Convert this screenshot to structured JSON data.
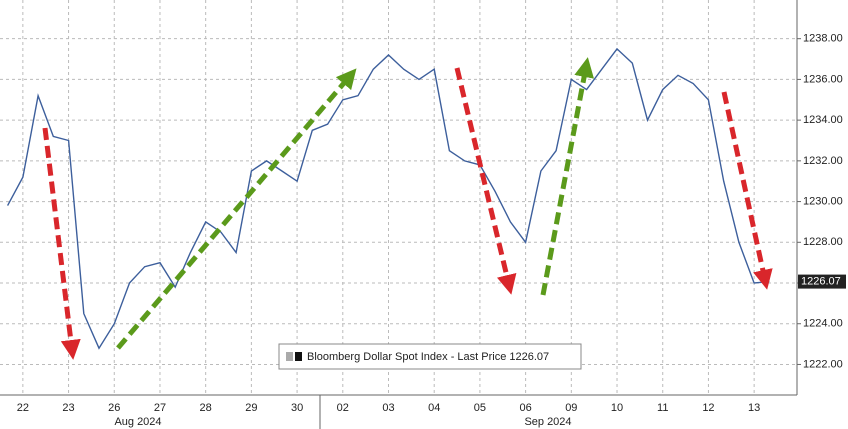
{
  "chart_data": {
    "type": "line",
    "categories": [
      null,
      "22",
      null,
      null,
      "23",
      null,
      null,
      "26",
      null,
      null,
      "27",
      null,
      null,
      "28",
      null,
      null,
      "29",
      null,
      null,
      "30",
      null,
      null,
      "02",
      null,
      null,
      "03",
      null,
      null,
      "04",
      null,
      null,
      "05",
      null,
      null,
      "06",
      null,
      null,
      "09",
      null,
      null,
      "10",
      null,
      null,
      "11",
      null,
      null,
      "12",
      null,
      null,
      "13",
      null
    ],
    "month_labels": [
      "Aug 2024",
      "Sep 2024"
    ],
    "series": [
      {
        "name": "Bloomberg Dollar Spot Index - Last Price",
        "color": "#3d5f9c",
        "values": [
          1229.8,
          1231.2,
          1235.2,
          1233.2,
          1233,
          1224.5,
          1222.8,
          1224,
          1226,
          1226.8,
          1227,
          1225.8,
          1227.5,
          1229,
          1228.5,
          1227.5,
          1231.5,
          1232,
          1231.5,
          1231,
          1233.5,
          1233.8,
          1235,
          1235.2,
          1236.5,
          1237.2,
          1236.5,
          1236,
          1236.5,
          1232.5,
          1232,
          1231.8,
          1230.5,
          1229,
          1228,
          1231.5,
          1232.5,
          1236,
          1235.5,
          1236.5,
          1237.5,
          1236.8,
          1234,
          1235.5,
          1236.2,
          1235.8,
          1235,
          1231,
          1228,
          1226,
          1226.07
        ]
      }
    ],
    "ylim": [
      1220.5,
      1239.9
    ],
    "yticks": [
      {
        "value": 1222,
        "label": "1222.00"
      },
      {
        "value": 1224,
        "label": "1224.00"
      },
      {
        "value": 1226,
        "label": "1226.00"
      },
      {
        "value": 1228,
        "label": "1228.00"
      },
      {
        "value": 1230,
        "label": "1230.00"
      },
      {
        "value": 1232,
        "label": "1232.00"
      },
      {
        "value": 1234,
        "label": "1234.00"
      },
      {
        "value": 1236,
        "label": "1236.00"
      },
      {
        "value": 1238,
        "label": "1238.00"
      }
    ],
    "grid": true
  }
}
